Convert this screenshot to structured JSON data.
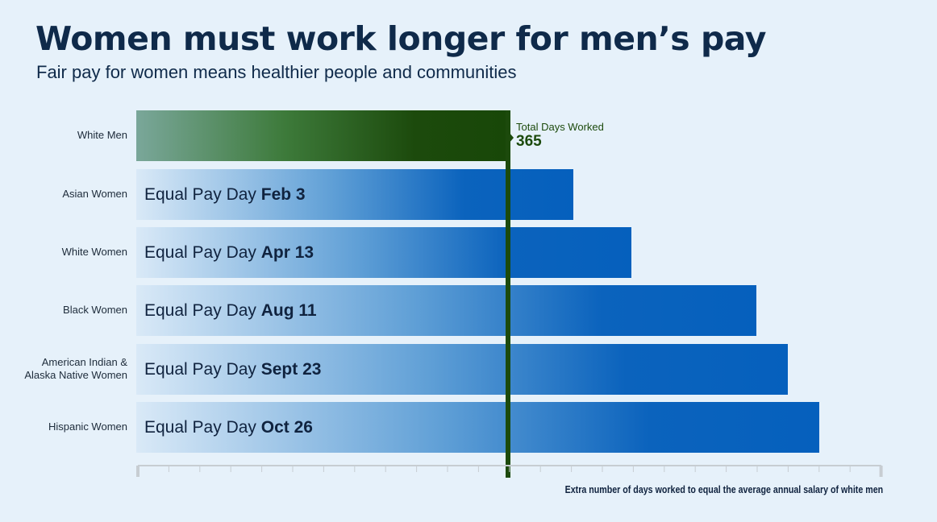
{
  "title": "Women must work longer for men’s pay",
  "subtitle": "Fair pay for women means healthier people and communities",
  "chart_data": {
    "type": "bar",
    "orientation": "horizontal",
    "title": "Women must work longer for men’s pay",
    "subtitle": "Fair pay for women means healthier people and communities",
    "xlabel": "Extra number of days worked to equal the average annual salary of white men",
    "reference": {
      "label": "Total Days Worked",
      "value": "365",
      "days": 365
    },
    "categories": [
      "White Men",
      "Asian Women",
      "White Women",
      "Black Women",
      "American Indian & Alaska Native Women",
      "Hispanic Women"
    ],
    "category_lines": [
      [
        "White Men"
      ],
      [
        "Asian Women"
      ],
      [
        "White Women"
      ],
      [
        "Black Women"
      ],
      [
        "American Indian &",
        "Alaska Native Women"
      ],
      [
        "Hispanic Women"
      ]
    ],
    "values": [
      365,
      429,
      486,
      609,
      640,
      671
    ],
    "bar_prefix": "Equal Pay Day",
    "bar_dates": [
      "",
      "Feb 3",
      "Apr 13",
      "Aug 11",
      "Sept 23",
      "Oct 26"
    ],
    "xlim": [
      0,
      733
    ],
    "colors": {
      "men": "#1c4a0c",
      "women": "#0560bd"
    }
  }
}
